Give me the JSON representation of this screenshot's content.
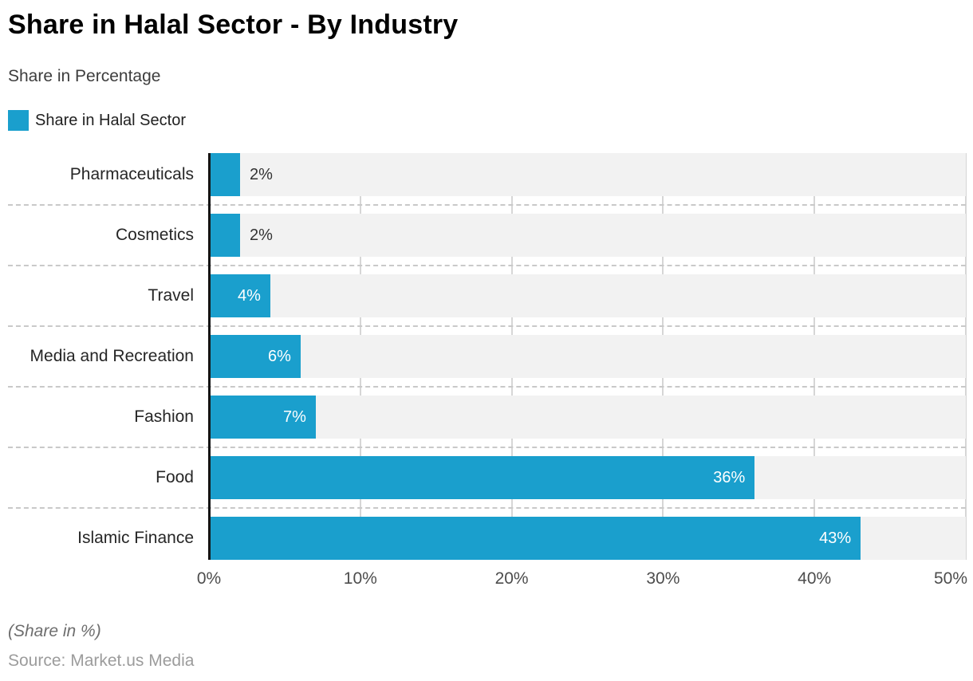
{
  "header": {
    "title": "Share in Halal Sector - By Industry",
    "subtitle": "Share in Percentage"
  },
  "legend": {
    "label": "Share in Halal Sector",
    "swatch_color": "#1a9fcd"
  },
  "chart_data": {
    "type": "bar",
    "orientation": "horizontal",
    "title": "Share in Halal Sector - By Industry",
    "subtitle": "Share in Percentage",
    "series_name": "Share in Halal Sector",
    "categories": [
      "Pharmaceuticals",
      "Cosmetics",
      "Travel",
      "Media and Recreation",
      "Fashion",
      "Food",
      "Islamic Finance"
    ],
    "values": [
      2,
      2,
      4,
      6,
      7,
      36,
      43
    ],
    "value_labels": [
      "2%",
      "2%",
      "4%",
      "6%",
      "7%",
      "36%",
      "43%"
    ],
    "xlabel": "",
    "ylabel": "",
    "xlim": [
      0,
      50
    ],
    "x_tick_values": [
      0,
      10,
      20,
      30,
      40,
      50
    ],
    "x_tick_labels": [
      "0%",
      "10%",
      "20%",
      "30%",
      "40%",
      "50%"
    ],
    "grid": "vertical-on",
    "legend_position": "top-left",
    "bar_color": "#1a9fcd",
    "band_color": "#f2f2f2",
    "gridline_color": "#d6d6d6",
    "axis_line_color": "#141414"
  },
  "footer": {
    "note": "(Share in %)",
    "source": "Source: Market.us Media"
  }
}
